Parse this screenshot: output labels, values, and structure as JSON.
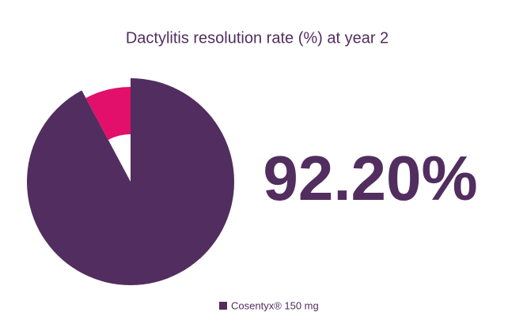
{
  "chart_data": {
    "type": "pie",
    "title": "Dactylitis resolution rate (%)  at year 2",
    "categories": [
      "Cosentyx® 150 mg",
      null
    ],
    "values": [
      92.2,
      7.8
    ],
    "value_labels": [
      "92.20%",
      null
    ],
    "colors": [
      "#522d5f",
      "#e2106a"
    ]
  }
}
